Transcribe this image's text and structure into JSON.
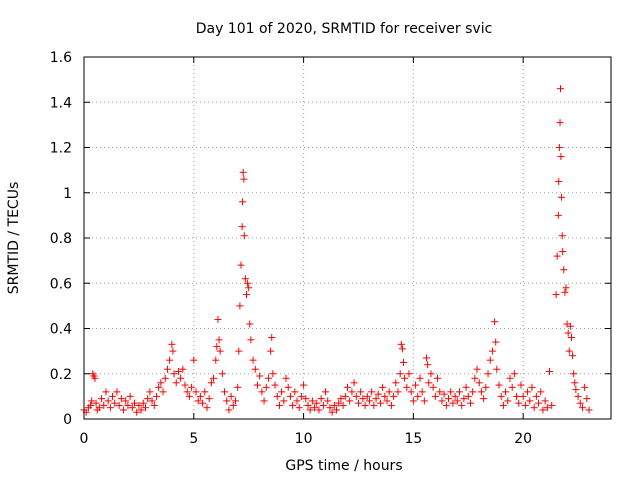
{
  "chart_data": {
    "type": "scatter",
    "title": "Day 101 of 2020, SRMTID for receiver svic",
    "xlabel": "GPS time / hours",
    "ylabel": "SRMTID / TECUs",
    "xlim": [
      0,
      24
    ],
    "ylim": [
      0,
      1.6
    ],
    "xticks": [
      0,
      5,
      10,
      15,
      20
    ],
    "xtick_labels": [
      "0",
      "5",
      "10",
      "15",
      "20"
    ],
    "yticks": [
      0,
      0.2,
      0.4,
      0.6,
      0.8,
      1,
      1.2,
      1.4,
      1.6
    ],
    "ytick_labels": [
      "0",
      "0.2",
      "0.4",
      "0.6",
      "0.8",
      "1",
      "1.2",
      "1.4",
      "1.6"
    ],
    "grid": true,
    "marker": "+",
    "color": "#ff0000",
    "series": [
      {
        "name": "SRMTID",
        "points": [
          [
            0.0,
            0.04
          ],
          [
            0.1,
            0.03
          ],
          [
            0.2,
            0.05
          ],
          [
            0.3,
            0.06
          ],
          [
            0.35,
            0.08
          ],
          [
            0.4,
            0.2
          ],
          [
            0.45,
            0.19
          ],
          [
            0.5,
            0.18
          ],
          [
            0.55,
            0.07
          ],
          [
            0.6,
            0.04
          ],
          [
            0.7,
            0.05
          ],
          [
            0.8,
            0.09
          ],
          [
            0.9,
            0.06
          ],
          [
            1.0,
            0.12
          ],
          [
            1.1,
            0.08
          ],
          [
            1.2,
            0.05
          ],
          [
            1.3,
            0.1
          ],
          [
            1.4,
            0.07
          ],
          [
            1.5,
            0.12
          ],
          [
            1.6,
            0.06
          ],
          [
            1.7,
            0.09
          ],
          [
            1.8,
            0.04
          ],
          [
            1.9,
            0.08
          ],
          [
            2.0,
            0.06
          ],
          [
            2.1,
            0.1
          ],
          [
            2.2,
            0.05
          ],
          [
            2.3,
            0.07
          ],
          [
            2.4,
            0.03
          ],
          [
            2.5,
            0.06
          ],
          [
            2.6,
            0.04
          ],
          [
            2.7,
            0.07
          ],
          [
            2.8,
            0.05
          ],
          [
            2.9,
            0.09
          ],
          [
            3.0,
            0.12
          ],
          [
            3.1,
            0.08
          ],
          [
            3.2,
            0.06
          ],
          [
            3.3,
            0.1
          ],
          [
            3.4,
            0.14
          ],
          [
            3.5,
            0.16
          ],
          [
            3.6,
            0.12
          ],
          [
            3.7,
            0.18
          ],
          [
            3.8,
            0.22
          ],
          [
            3.9,
            0.26
          ],
          [
            4.0,
            0.33
          ],
          [
            4.05,
            0.3
          ],
          [
            4.1,
            0.2
          ],
          [
            4.2,
            0.16
          ],
          [
            4.3,
            0.21
          ],
          [
            4.4,
            0.18
          ],
          [
            4.5,
            0.22
          ],
          [
            4.6,
            0.15
          ],
          [
            4.7,
            0.12
          ],
          [
            4.8,
            0.1
          ],
          [
            4.9,
            0.14
          ],
          [
            5.0,
            0.26
          ],
          [
            5.1,
            0.12
          ],
          [
            5.2,
            0.08
          ],
          [
            5.3,
            0.1
          ],
          [
            5.4,
            0.07
          ],
          [
            5.5,
            0.12
          ],
          [
            5.6,
            0.05
          ],
          [
            5.7,
            0.09
          ],
          [
            5.8,
            0.16
          ],
          [
            5.9,
            0.18
          ],
          [
            6.0,
            0.26
          ],
          [
            6.05,
            0.32
          ],
          [
            6.1,
            0.44
          ],
          [
            6.15,
            0.35
          ],
          [
            6.2,
            0.3
          ],
          [
            6.3,
            0.2
          ],
          [
            6.4,
            0.12
          ],
          [
            6.5,
            0.08
          ],
          [
            6.6,
            0.04
          ],
          [
            6.7,
            0.1
          ],
          [
            6.8,
            0.06
          ],
          [
            6.9,
            0.08
          ],
          [
            7.0,
            0.14
          ],
          [
            7.05,
            0.3
          ],
          [
            7.1,
            0.5
          ],
          [
            7.15,
            0.68
          ],
          [
            7.2,
            0.85
          ],
          [
            7.22,
            0.96
          ],
          [
            7.25,
            1.09
          ],
          [
            7.28,
            1.06
          ],
          [
            7.3,
            0.81
          ],
          [
            7.35,
            0.62
          ],
          [
            7.4,
            0.55
          ],
          [
            7.45,
            0.6
          ],
          [
            7.5,
            0.58
          ],
          [
            7.55,
            0.42
          ],
          [
            7.6,
            0.35
          ],
          [
            7.7,
            0.26
          ],
          [
            7.8,
            0.22
          ],
          [
            7.9,
            0.15
          ],
          [
            8.0,
            0.19
          ],
          [
            8.1,
            0.12
          ],
          [
            8.2,
            0.08
          ],
          [
            8.3,
            0.14
          ],
          [
            8.4,
            0.18
          ],
          [
            8.5,
            0.3
          ],
          [
            8.55,
            0.36
          ],
          [
            8.6,
            0.2
          ],
          [
            8.7,
            0.15
          ],
          [
            8.8,
            0.1
          ],
          [
            8.9,
            0.06
          ],
          [
            9.0,
            0.12
          ],
          [
            9.1,
            0.08
          ],
          [
            9.2,
            0.18
          ],
          [
            9.3,
            0.14
          ],
          [
            9.4,
            0.1
          ],
          [
            9.5,
            0.06
          ],
          [
            9.6,
            0.12
          ],
          [
            9.7,
            0.08
          ],
          [
            9.8,
            0.05
          ],
          [
            9.9,
            0.1
          ],
          [
            10.0,
            0.15
          ],
          [
            10.1,
            0.09
          ],
          [
            10.2,
            0.06
          ],
          [
            10.3,
            0.04
          ],
          [
            10.4,
            0.08
          ],
          [
            10.5,
            0.05
          ],
          [
            10.6,
            0.07
          ],
          [
            10.7,
            0.04
          ],
          [
            10.8,
            0.09
          ],
          [
            10.9,
            0.06
          ],
          [
            11.0,
            0.12
          ],
          [
            11.1,
            0.08
          ],
          [
            11.2,
            0.05
          ],
          [
            11.3,
            0.03
          ],
          [
            11.4,
            0.06
          ],
          [
            11.5,
            0.04
          ],
          [
            11.6,
            0.07
          ],
          [
            11.7,
            0.09
          ],
          [
            11.8,
            0.06
          ],
          [
            11.9,
            0.1
          ],
          [
            12.0,
            0.14
          ],
          [
            12.1,
            0.08
          ],
          [
            12.2,
            0.12
          ],
          [
            12.3,
            0.16
          ],
          [
            12.4,
            0.1
          ],
          [
            12.5,
            0.07
          ],
          [
            12.6,
            0.12
          ],
          [
            12.7,
            0.09
          ],
          [
            12.8,
            0.06
          ],
          [
            12.9,
            0.1
          ],
          [
            13.0,
            0.08
          ],
          [
            13.1,
            0.12
          ],
          [
            13.2,
            0.06
          ],
          [
            13.3,
            0.09
          ],
          [
            13.4,
            0.11
          ],
          [
            13.5,
            0.07
          ],
          [
            13.6,
            0.14
          ],
          [
            13.7,
            0.1
          ],
          [
            13.8,
            0.08
          ],
          [
            13.9,
            0.12
          ],
          [
            14.0,
            0.06
          ],
          [
            14.1,
            0.1
          ],
          [
            14.2,
            0.16
          ],
          [
            14.3,
            0.12
          ],
          [
            14.4,
            0.2
          ],
          [
            14.45,
            0.33
          ],
          [
            14.5,
            0.31
          ],
          [
            14.55,
            0.25
          ],
          [
            14.6,
            0.18
          ],
          [
            14.7,
            0.14
          ],
          [
            14.8,
            0.2
          ],
          [
            14.9,
            0.12
          ],
          [
            15.0,
            0.08
          ],
          [
            15.1,
            0.15
          ],
          [
            15.2,
            0.1
          ],
          [
            15.3,
            0.18
          ],
          [
            15.4,
            0.12
          ],
          [
            15.5,
            0.08
          ],
          [
            15.6,
            0.27
          ],
          [
            15.65,
            0.24
          ],
          [
            15.7,
            0.16
          ],
          [
            15.8,
            0.2
          ],
          [
            15.9,
            0.14
          ],
          [
            16.0,
            0.1
          ],
          [
            16.1,
            0.18
          ],
          [
            16.2,
            0.12
          ],
          [
            16.3,
            0.08
          ],
          [
            16.4,
            0.11
          ],
          [
            16.5,
            0.06
          ],
          [
            16.6,
            0.09
          ],
          [
            16.7,
            0.12
          ],
          [
            16.8,
            0.07
          ],
          [
            16.9,
            0.1
          ],
          [
            17.0,
            0.08
          ],
          [
            17.1,
            0.12
          ],
          [
            17.2,
            0.06
          ],
          [
            17.3,
            0.09
          ],
          [
            17.4,
            0.14
          ],
          [
            17.5,
            0.1
          ],
          [
            17.6,
            0.07
          ],
          [
            17.7,
            0.12
          ],
          [
            17.8,
            0.18
          ],
          [
            17.9,
            0.22
          ],
          [
            18.0,
            0.16
          ],
          [
            18.1,
            0.12
          ],
          [
            18.2,
            0.09
          ],
          [
            18.3,
            0.14
          ],
          [
            18.4,
            0.2
          ],
          [
            18.5,
            0.26
          ],
          [
            18.6,
            0.3
          ],
          [
            18.7,
            0.43
          ],
          [
            18.75,
            0.34
          ],
          [
            18.8,
            0.22
          ],
          [
            18.9,
            0.15
          ],
          [
            19.0,
            0.1
          ],
          [
            19.1,
            0.06
          ],
          [
            19.2,
            0.12
          ],
          [
            19.3,
            0.08
          ],
          [
            19.4,
            0.18
          ],
          [
            19.5,
            0.14
          ],
          [
            19.6,
            0.2
          ],
          [
            19.7,
            0.1
          ],
          [
            19.8,
            0.07
          ],
          [
            19.9,
            0.15
          ],
          [
            20.0,
            0.1
          ],
          [
            20.1,
            0.06
          ],
          [
            20.2,
            0.12
          ],
          [
            20.3,
            0.08
          ],
          [
            20.4,
            0.14
          ],
          [
            20.5,
            0.05
          ],
          [
            20.6,
            0.1
          ],
          [
            20.7,
            0.07
          ],
          [
            20.8,
            0.12
          ],
          [
            20.9,
            0.04
          ],
          [
            21.0,
            0.08
          ],
          [
            21.1,
            0.05
          ],
          [
            21.2,
            0.21
          ],
          [
            21.3,
            0.06
          ],
          [
            21.5,
            0.55
          ],
          [
            21.55,
            0.72
          ],
          [
            21.6,
            0.9
          ],
          [
            21.62,
            1.05
          ],
          [
            21.65,
            1.2
          ],
          [
            21.68,
            1.31
          ],
          [
            21.7,
            1.46
          ],
          [
            21.72,
            1.16
          ],
          [
            21.75,
            0.98
          ],
          [
            21.78,
            0.81
          ],
          [
            21.8,
            0.74
          ],
          [
            21.85,
            0.66
          ],
          [
            21.9,
            0.56
          ],
          [
            21.95,
            0.58
          ],
          [
            22.0,
            0.42
          ],
          [
            22.05,
            0.38
          ],
          [
            22.1,
            0.3
          ],
          [
            22.15,
            0.41
          ],
          [
            22.2,
            0.36
          ],
          [
            22.25,
            0.28
          ],
          [
            22.3,
            0.2
          ],
          [
            22.35,
            0.16
          ],
          [
            22.4,
            0.13
          ],
          [
            22.5,
            0.1
          ],
          [
            22.6,
            0.07
          ],
          [
            22.7,
            0.05
          ],
          [
            22.8,
            0.14
          ],
          [
            22.9,
            0.09
          ],
          [
            23.0,
            0.04
          ]
        ]
      }
    ]
  }
}
